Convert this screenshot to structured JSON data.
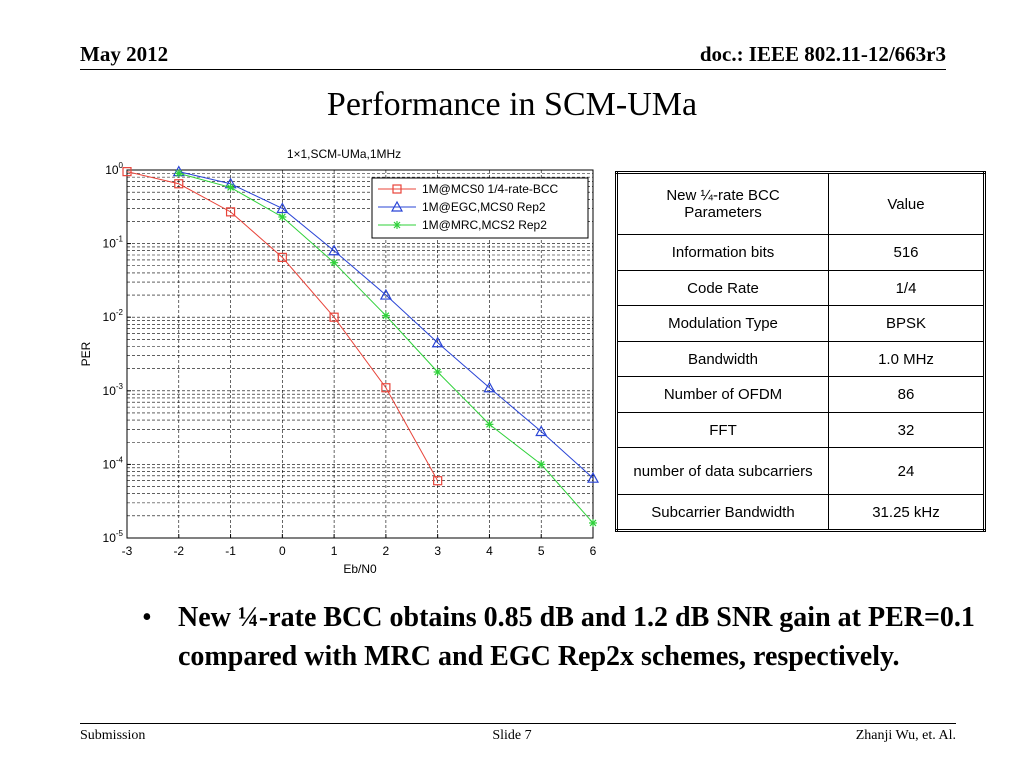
{
  "header": {
    "left": "May 2012",
    "right": "doc.: IEEE 802.11-12/663r3"
  },
  "title": "Performance in SCM-UMa",
  "chart_data": {
    "type": "line",
    "title": "1×1,SCM-UMa,1MHz",
    "xlabel": "Eb/N0",
    "ylabel": "PER",
    "xlim": [
      -3,
      6
    ],
    "ylim": [
      1e-05,
      1
    ],
    "yscale": "log",
    "grid": true,
    "legend_position": "top-right",
    "x_ticks": [
      "-3",
      "-2",
      "-1",
      "0",
      "1",
      "2",
      "3",
      "4",
      "5",
      "6"
    ],
    "y_ticks": [
      {
        "base": "10",
        "exp": "0"
      },
      {
        "base": "10",
        "exp": "-1"
      },
      {
        "base": "10",
        "exp": "-2"
      },
      {
        "base": "10",
        "exp": "-3"
      },
      {
        "base": "10",
        "exp": "-4"
      },
      {
        "base": "10",
        "exp": "-5"
      }
    ],
    "series": [
      {
        "name": "1M@MCS0 1/4-rate-BCC",
        "color": "#e8443a",
        "marker": "square",
        "x": [
          -3,
          -2,
          -1,
          0,
          1,
          2,
          3
        ],
        "y": [
          0.95,
          0.65,
          0.27,
          0.065,
          0.01,
          0.0011,
          6e-05
        ]
      },
      {
        "name": "1M@EGC,MCS0 Rep2",
        "color": "#2a45d6",
        "marker": "triangle",
        "x": [
          -2,
          -1,
          0,
          1,
          2,
          3,
          4,
          5,
          6
        ],
        "y": [
          0.95,
          0.65,
          0.3,
          0.08,
          0.02,
          0.0045,
          0.0011,
          0.00028,
          6.5e-05
        ]
      },
      {
        "name": "1M@MRC,MCS2 Rep2",
        "color": "#2fd13a",
        "marker": "star",
        "x": [
          -2,
          -1,
          0,
          1,
          2,
          3,
          4,
          5,
          6
        ],
        "y": [
          0.9,
          0.58,
          0.23,
          0.055,
          0.0105,
          0.0018,
          0.00035,
          0.0001,
          1.6e-05
        ]
      }
    ]
  },
  "table": {
    "header": [
      "New ¼-rate BCC Parameters",
      "Value"
    ],
    "rows": [
      [
        "Information bits",
        "516"
      ],
      [
        "Code Rate",
        "1/4"
      ],
      [
        "Modulation Type",
        "BPSK"
      ],
      [
        "Bandwidth",
        "1.0 MHz"
      ],
      [
        "Number of OFDM",
        "86"
      ],
      [
        "FFT",
        "32"
      ],
      [
        "number of data subcarriers",
        "24"
      ],
      [
        "Subcarrier Bandwidth",
        "31.25  kHz"
      ]
    ]
  },
  "bullet": {
    "symbol": "•",
    "text": "New ¼-rate BCC obtains 0.85 dB and 1.2 dB SNR gain at PER=0.1 compared with MRC and EGC Rep2x schemes, respectively."
  },
  "footer": {
    "left": "Submission",
    "center": "Slide 7",
    "right": "Zhanji Wu, et. Al."
  }
}
